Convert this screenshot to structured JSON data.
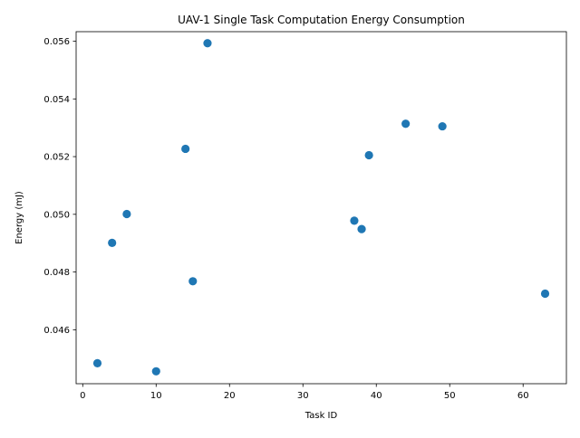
{
  "chart_data": {
    "type": "scatter",
    "title": "UAV-1 Single Task Computation Energy Consumption",
    "xlabel": "Task ID",
    "ylabel": "Energy (mJ)",
    "xlim": [
      -0.9,
      65.9
    ],
    "ylim": [
      0.04413,
      0.05633
    ],
    "xticks": [
      0,
      10,
      20,
      30,
      40,
      50,
      60
    ],
    "xtick_labels": [
      "0",
      "10",
      "20",
      "30",
      "40",
      "50",
      "60"
    ],
    "yticks": [
      0.046,
      0.048,
      0.05,
      0.052,
      0.054,
      0.056
    ],
    "ytick_labels": [
      "0.046",
      "0.048",
      "0.050",
      "0.052",
      "0.054",
      "0.056"
    ],
    "grid": false,
    "legend": "none",
    "color": "#1f77b4",
    "points": [
      {
        "x": 2,
        "y": 0.04484
      },
      {
        "x": 4,
        "y": 0.04901
      },
      {
        "x": 6,
        "y": 0.05001
      },
      {
        "x": 10,
        "y": 0.04456
      },
      {
        "x": 14,
        "y": 0.05227
      },
      {
        "x": 15,
        "y": 0.04768
      },
      {
        "x": 17,
        "y": 0.05593
      },
      {
        "x": 37,
        "y": 0.04978
      },
      {
        "x": 38,
        "y": 0.04949
      },
      {
        "x": 39,
        "y": 0.05205
      },
      {
        "x": 44,
        "y": 0.05314
      },
      {
        "x": 49,
        "y": 0.05305
      },
      {
        "x": 63,
        "y": 0.04725
      }
    ]
  }
}
